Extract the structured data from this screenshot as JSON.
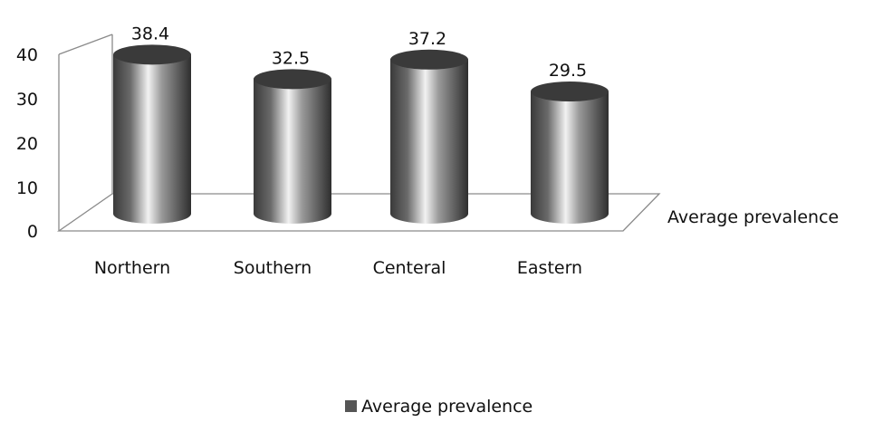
{
  "chart_data": {
    "type": "bar",
    "categories": [
      "Northern",
      "Southern",
      "Centeral",
      "Eastern"
    ],
    "series": [
      {
        "name": "Average prevalence",
        "values": [
          38.4,
          32.5,
          37.2,
          29.5
        ]
      }
    ],
    "data_labels": [
      "38.4",
      "32.5",
      "37.2",
      "29.5"
    ],
    "ylim": [
      0,
      40
    ],
    "yticks": [
      "0",
      "10",
      "20",
      "30",
      "40"
    ],
    "depth_axis_label": "Average prevalence",
    "legend": {
      "position": "bottom",
      "label": "Average prevalence"
    },
    "style": "3d-cylinder",
    "colors": {
      "bar_dark": "#3a3a3a",
      "bar_light": "#f2f2f2",
      "axis": "#8a8a8a",
      "legend_swatch": "#555555"
    }
  }
}
